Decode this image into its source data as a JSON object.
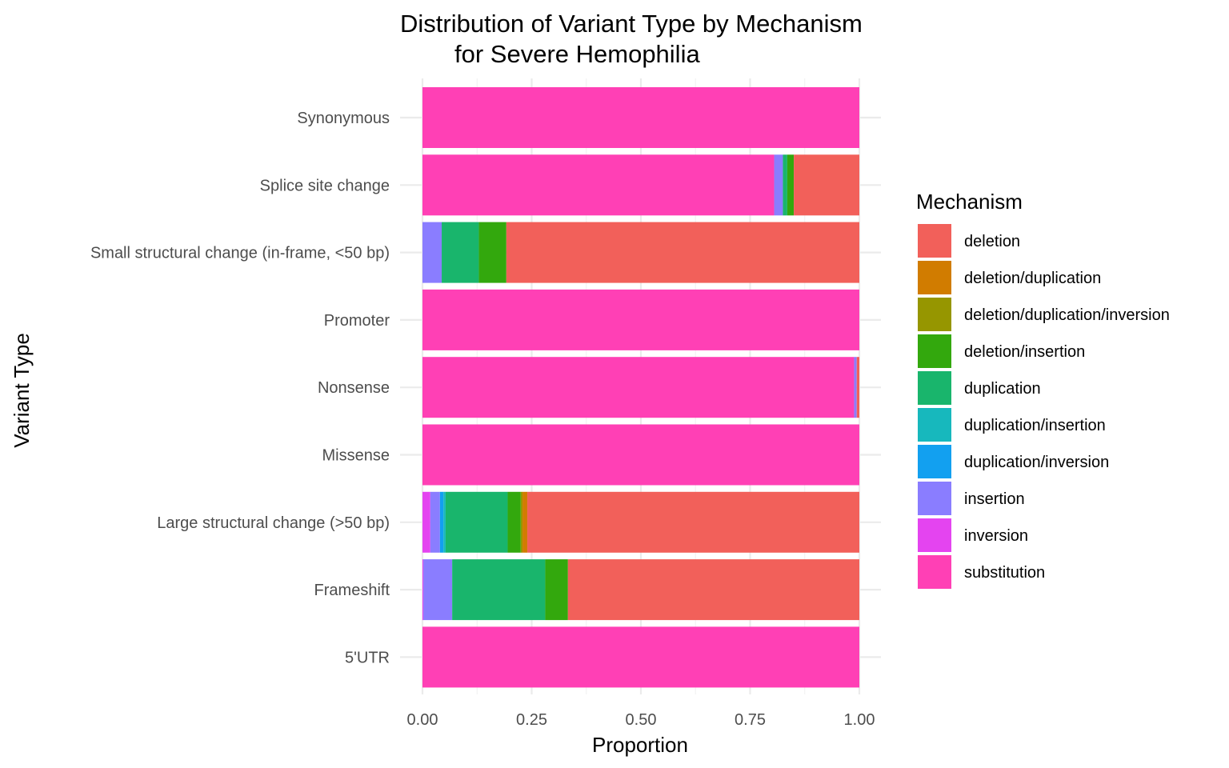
{
  "chart_data": {
    "type": "bar",
    "orientation": "horizontal",
    "stacked": true,
    "title_line1": "Distribution of Variant Type by Mechanism",
    "title_line2": "for Severe Hemophilia",
    "xlabel": "Proportion",
    "ylabel": "Variant Type",
    "xlim": [
      0,
      1
    ],
    "xticks": [
      "0.00",
      "0.25",
      "0.50",
      "0.75",
      "1.00"
    ],
    "grid": true,
    "legend_position": "right",
    "legend_title": "Mechanism",
    "categories": [
      "5'UTR",
      "Frameshift",
      "Large structural change (>50 bp)",
      "Missense",
      "Nonsense",
      "Promoter",
      "Small structural change (in-frame, <50 bp)",
      "Splice site change",
      "Synonymous"
    ],
    "series": [
      {
        "name": "substitution",
        "color": "#FF40B5",
        "values": [
          1.0,
          0.0,
          0.0,
          1.0,
          0.988,
          1.0,
          0.0,
          0.805,
          1.0
        ]
      },
      {
        "name": "inversion",
        "color": "#E444F0",
        "values": [
          0.0,
          0.002,
          0.018,
          0.0,
          0.0,
          0.0,
          0.0,
          0.0,
          0.0
        ]
      },
      {
        "name": "insertion",
        "color": "#8A7DFF",
        "values": [
          0.0,
          0.066,
          0.022,
          0.0,
          0.006,
          0.0,
          0.044,
          0.02,
          0.0
        ]
      },
      {
        "name": "duplication/inversion",
        "color": "#12A0F0",
        "values": [
          0.0,
          0.0,
          0.008,
          0.0,
          0.0,
          0.0,
          0.0,
          0.0,
          0.0
        ]
      },
      {
        "name": "duplication/insertion",
        "color": "#17B8BD",
        "values": [
          0.0,
          0.0,
          0.005,
          0.0,
          0.0,
          0.0,
          0.0,
          0.0,
          0.0
        ]
      },
      {
        "name": "duplication",
        "color": "#19B56C",
        "values": [
          0.0,
          0.213,
          0.142,
          0.0,
          0.0,
          0.0,
          0.085,
          0.01,
          0.0
        ]
      },
      {
        "name": "deletion/insertion",
        "color": "#33A80D",
        "values": [
          0.0,
          0.052,
          0.03,
          0.0,
          0.0,
          0.0,
          0.063,
          0.015,
          0.0
        ]
      },
      {
        "name": "deletion/duplication/inversion",
        "color": "#969600",
        "values": [
          0.0,
          0.0,
          0.004,
          0.0,
          0.0,
          0.0,
          0.0,
          0.0,
          0.0
        ]
      },
      {
        "name": "deletion/duplication",
        "color": "#D17C00",
        "values": [
          0.0,
          0.0,
          0.011,
          0.0,
          0.0,
          0.0,
          0.0,
          0.0,
          0.0
        ]
      },
      {
        "name": "deletion",
        "color": "#F2605A",
        "values": [
          0.0,
          0.667,
          0.76,
          0.0,
          0.006,
          0.0,
          0.808,
          0.15,
          0.0
        ]
      }
    ],
    "legend_order": [
      "deletion",
      "deletion/duplication",
      "deletion/duplication/inversion",
      "deletion/insertion",
      "duplication",
      "duplication/insertion",
      "duplication/inversion",
      "insertion",
      "inversion",
      "substitution"
    ]
  }
}
